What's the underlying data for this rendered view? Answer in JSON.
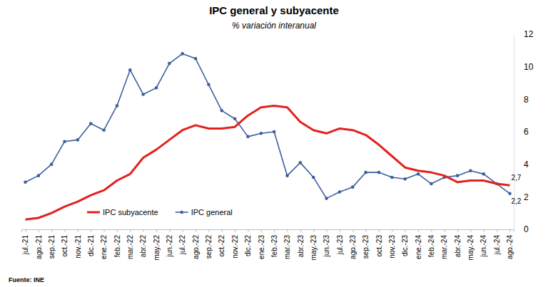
{
  "chart_data": {
    "type": "line",
    "title": "IPC general y subyacente",
    "subtitle": "% variación interanual",
    "source": "Fuente: INE",
    "categories": [
      "jul.-21",
      "ago.-21",
      "sep.-21",
      "oct.-21",
      "nov.-21",
      "dic.-21",
      "ene.-22",
      "feb.-22",
      "mar.-22",
      "abr.-22",
      "may.-22",
      "jun.-22",
      "jul.-22",
      "ago.-22",
      "sep.-22",
      "oct.-22",
      "nov.-22",
      "dic.-22",
      "ene.-23",
      "feb.-23",
      "mar.-23",
      "abr.-23",
      "may.-23",
      "jun.-23",
      "jul.-23",
      "ago.-23",
      "sep.-23",
      "oct.-23",
      "nov.-23",
      "dic.-23",
      "ene.-24",
      "feb.-24",
      "mar.-24",
      "abr.-24",
      "may.-24",
      "jun.-24",
      "jul.-24",
      "ago.-24"
    ],
    "series": [
      {
        "name": "IPC subyacente",
        "color": "#e3211c",
        "marker": "none",
        "line_style": "solid",
        "values": [
          0.6,
          0.7,
          1.0,
          1.4,
          1.7,
          2.1,
          2.4,
          3.0,
          3.4,
          4.4,
          4.9,
          5.5,
          6.1,
          6.4,
          6.2,
          6.2,
          6.3,
          7.0,
          7.5,
          7.6,
          7.5,
          6.6,
          6.1,
          5.9,
          6.2,
          6.1,
          5.8,
          5.2,
          4.5,
          3.8,
          3.6,
          3.5,
          3.3,
          2.9,
          3.0,
          3.0,
          2.8,
          2.7
        ],
        "value_labels": [
          null,
          null,
          null,
          null,
          null,
          null,
          null,
          null,
          null,
          null,
          null,
          null,
          null,
          null,
          null,
          null,
          null,
          null,
          null,
          null,
          null,
          null,
          null,
          null,
          null,
          null,
          null,
          null,
          null,
          null,
          null,
          null,
          null,
          null,
          null,
          null,
          null,
          "2,7"
        ]
      },
      {
        "name": "IPC general",
        "color": "#3d5f9e",
        "marker": "circle",
        "line_style": "solid",
        "values": [
          2.9,
          3.3,
          4.0,
          5.4,
          5.5,
          6.5,
          6.1,
          7.6,
          9.8,
          8.3,
          8.7,
          10.2,
          10.8,
          10.5,
          8.9,
          7.3,
          6.8,
          5.7,
          5.9,
          6.0,
          3.3,
          4.1,
          3.2,
          1.9,
          2.3,
          2.6,
          3.5,
          3.5,
          3.2,
          3.1,
          3.4,
          2.8,
          3.2,
          3.3,
          3.6,
          3.4,
          2.8,
          2.2
        ],
        "value_labels": [
          null,
          null,
          null,
          null,
          null,
          null,
          null,
          null,
          null,
          null,
          null,
          null,
          null,
          null,
          null,
          null,
          null,
          null,
          null,
          null,
          null,
          null,
          null,
          null,
          null,
          null,
          null,
          null,
          null,
          null,
          null,
          null,
          null,
          null,
          null,
          null,
          null,
          "2,2"
        ]
      }
    ],
    "ylim": [
      0,
      12
    ],
    "yticks": [
      0,
      2,
      4,
      6,
      8,
      10,
      12
    ],
    "grid": false,
    "legend": "lower left"
  }
}
